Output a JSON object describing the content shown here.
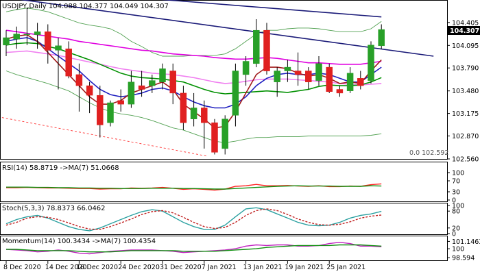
{
  "chart_data": {
    "type": "candlestick",
    "symbol_header": "USDJPY,Daily  104.088 104.377 104.049 104.307",
    "current_price": "104.307",
    "fib_label": "0.0 102.592",
    "x_labels": [
      "8 Dec 2020",
      "14 Dec 2020",
      "18 Dec 2020",
      "24 Dec 2020",
      "31 Dec 2020",
      "7 Jan 2021",
      "13 Jan 2021",
      "19 Jan 2021",
      "25 Jan 2021"
    ],
    "main_ticks": [
      "104.405",
      "104.095",
      "103.790",
      "103.480",
      "103.175",
      "102.870",
      "102.560"
    ],
    "main_ylim": [
      102.56,
      104.7
    ],
    "candles": [
      {
        "o": 104.1,
        "h": 104.3,
        "l": 103.95,
        "c": 104.2
      },
      {
        "o": 104.18,
        "h": 104.35,
        "l": 104.05,
        "c": 104.25
      },
      {
        "o": 104.25,
        "h": 104.6,
        "l": 104.1,
        "c": 104.25
      },
      {
        "o": 104.24,
        "h": 104.4,
        "l": 104.05,
        "c": 104.28
      },
      {
        "o": 104.28,
        "h": 104.38,
        "l": 103.85,
        "c": 104.03
      },
      {
        "o": 104.03,
        "h": 104.2,
        "l": 103.5,
        "c": 104.09
      },
      {
        "o": 104.05,
        "h": 104.15,
        "l": 103.65,
        "c": 103.68
      },
      {
        "o": 103.7,
        "h": 103.85,
        "l": 103.2,
        "c": 103.55
      },
      {
        "o": 103.55,
        "h": 103.6,
        "l": 103.18,
        "c": 103.42
      },
      {
        "o": 103.42,
        "h": 103.55,
        "l": 102.85,
        "c": 103.02
      },
      {
        "o": 103.05,
        "h": 103.35,
        "l": 103.0,
        "c": 103.32
      },
      {
        "o": 103.35,
        "h": 103.5,
        "l": 103.2,
        "c": 103.3
      },
      {
        "o": 103.3,
        "h": 103.75,
        "l": 103.25,
        "c": 103.6
      },
      {
        "o": 103.55,
        "h": 103.75,
        "l": 103.4,
        "c": 103.5
      },
      {
        "o": 103.55,
        "h": 103.7,
        "l": 103.45,
        "c": 103.62
      },
      {
        "o": 103.6,
        "h": 103.85,
        "l": 103.5,
        "c": 103.78
      },
      {
        "o": 103.75,
        "h": 103.85,
        "l": 103.3,
        "c": 103.45
      },
      {
        "o": 103.45,
        "h": 103.55,
        "l": 102.95,
        "c": 103.05
      },
      {
        "o": 103.1,
        "h": 103.45,
        "l": 103.0,
        "c": 103.25
      },
      {
        "o": 103.25,
        "h": 103.35,
        "l": 102.7,
        "c": 103.05
      },
      {
        "o": 103.05,
        "h": 103.1,
        "l": 102.62,
        "c": 102.65
      },
      {
        "o": 102.7,
        "h": 103.15,
        "l": 102.62,
        "c": 103.1
      },
      {
        "o": 103.15,
        "h": 103.85,
        "l": 103.0,
        "c": 103.75
      },
      {
        "o": 103.7,
        "h": 103.95,
        "l": 103.55,
        "c": 103.88
      },
      {
        "o": 103.85,
        "h": 104.45,
        "l": 103.8,
        "c": 104.3
      },
      {
        "o": 104.3,
        "h": 104.4,
        "l": 103.7,
        "c": 103.75
      },
      {
        "o": 103.6,
        "h": 103.8,
        "l": 103.4,
        "c": 103.75
      },
      {
        "o": 103.75,
        "h": 103.9,
        "l": 103.6,
        "c": 103.8
      },
      {
        "o": 103.75,
        "h": 104.0,
        "l": 103.55,
        "c": 103.7
      },
      {
        "o": 103.75,
        "h": 103.8,
        "l": 103.5,
        "c": 103.6
      },
      {
        "o": 103.62,
        "h": 103.95,
        "l": 103.55,
        "c": 103.85
      },
      {
        "o": 103.8,
        "h": 103.85,
        "l": 103.45,
        "c": 103.47
      },
      {
        "o": 103.5,
        "h": 103.55,
        "l": 103.4,
        "c": 103.45
      },
      {
        "o": 103.48,
        "h": 103.8,
        "l": 103.45,
        "c": 103.72
      },
      {
        "o": 103.65,
        "h": 103.75,
        "l": 103.5,
        "c": 103.55
      },
      {
        "o": 103.62,
        "h": 104.15,
        "l": 103.58,
        "c": 104.1
      },
      {
        "o": 104.09,
        "h": 104.38,
        "l": 104.05,
        "c": 104.31
      }
    ],
    "overlays": [
      {
        "name": "",
        "color": "#e000e0",
        "values": [
          104.3,
          104.28,
          104.26,
          104.24,
          104.22,
          104.2,
          104.18,
          104.15,
          104.13,
          104.11,
          104.09,
          104.07,
          104.05,
          104.03,
          104.02,
          104.0,
          103.98,
          103.97,
          103.96,
          103.95,
          103.93,
          103.92,
          103.91,
          103.91,
          103.92,
          103.93,
          103.92,
          103.9,
          103.88,
          103.86,
          103.86,
          103.85,
          103.84,
          103.84,
          103.84,
          103.86,
          103.88
        ]
      },
      {
        "name": "",
        "color": "#f080f0",
        "values": [
          104.0,
          104.01,
          104.02,
          104.0,
          103.98,
          103.96,
          103.93,
          103.9,
          103.87,
          103.84,
          103.81,
          103.78,
          103.76,
          103.74,
          103.72,
          103.71,
          103.7,
          103.68,
          103.66,
          103.63,
          103.6,
          103.58,
          103.59,
          103.61,
          103.63,
          103.64,
          103.64,
          103.64,
          103.63,
          103.62,
          103.61,
          103.6,
          103.58,
          103.57,
          103.56,
          103.57,
          103.58
        ]
      },
      {
        "name": "",
        "color": "#009000",
        "values": [
          104.1,
          104.12,
          104.13,
          104.12,
          104.08,
          104.05,
          104.0,
          103.95,
          103.9,
          103.84,
          103.78,
          103.72,
          103.68,
          103.66,
          103.65,
          103.64,
          103.62,
          103.6,
          103.55,
          103.5,
          103.46,
          103.44,
          103.45,
          103.46,
          103.47,
          103.48,
          103.47,
          103.46,
          103.48,
          103.5,
          103.54,
          103.56,
          103.55,
          103.55,
          103.56,
          103.6,
          103.66
        ]
      },
      {
        "name": "",
        "color": "#2020c0",
        "values": [
          104.15,
          104.18,
          104.2,
          104.15,
          104.05,
          103.95,
          103.85,
          103.75,
          103.62,
          103.5,
          103.43,
          103.4,
          103.42,
          103.45,
          103.5,
          103.52,
          103.48,
          103.4,
          103.33,
          103.28,
          103.25,
          103.25,
          103.3,
          103.4,
          103.55,
          103.65,
          103.7,
          103.72,
          103.7,
          103.7,
          103.72,
          103.7,
          103.65,
          103.6,
          103.6,
          103.7,
          103.8
        ]
      },
      {
        "name": "",
        "color": "#a01818",
        "values": [
          104.18,
          104.22,
          104.24,
          104.15,
          104.0,
          103.85,
          103.7,
          103.55,
          103.4,
          103.3,
          103.3,
          103.35,
          103.45,
          103.5,
          103.55,
          103.6,
          103.5,
          103.3,
          103.2,
          103.1,
          102.98,
          103.0,
          103.2,
          103.45,
          103.7,
          103.8,
          103.8,
          103.78,
          103.72,
          103.68,
          103.7,
          103.65,
          103.58,
          103.6,
          103.58,
          103.75,
          103.9
        ]
      }
    ],
    "bands": {
      "color": "#50a050",
      "upper": [
        104.55,
        104.58,
        104.6,
        104.58,
        104.55,
        104.5,
        104.45,
        104.4,
        104.37,
        104.35,
        104.32,
        104.25,
        104.15,
        104.08,
        104.0,
        103.95,
        103.95,
        103.95,
        103.96,
        103.96,
        103.96,
        103.98,
        104.05,
        104.15,
        104.25,
        104.3,
        104.3,
        104.32,
        104.33,
        104.33,
        104.32,
        104.3,
        104.28,
        104.28,
        104.28,
        104.32,
        104.42
      ],
      "lower": [
        103.75,
        103.7,
        103.66,
        103.62,
        103.58,
        103.53,
        103.48,
        103.4,
        103.32,
        103.25,
        103.2,
        103.17,
        103.15,
        103.12,
        103.08,
        103.03,
        102.98,
        102.95,
        102.9,
        102.85,
        102.8,
        102.78,
        102.8,
        102.83,
        102.85,
        102.85,
        102.86,
        102.86,
        102.86,
        102.87,
        102.87,
        102.87,
        102.87,
        102.87,
        102.87,
        102.88,
        102.9
      ]
    },
    "trendlines": [
      {
        "color": "#1a1a78",
        "points": [
          [
            14.5,
            104.72
          ],
          [
            36.0,
            104.48
          ]
        ]
      },
      {
        "color": "#1a1a78",
        "points": [
          [
            -0.4,
            104.75
          ],
          [
            41.0,
            103.95
          ]
        ]
      },
      {
        "color": "#ff3030",
        "dash": true,
        "points": [
          [
            -0.4,
            103.12
          ],
          [
            19.2,
            102.6
          ]
        ]
      }
    ],
    "indicators": [
      {
        "label": "RSI(14) 58.8719 ->MA(7) 51.0668",
        "ticks": [
          "100",
          "70",
          "30",
          "0"
        ],
        "ylim": [
          0,
          100
        ],
        "series": [
          {
            "color": "#ff2020",
            "values": [
              45,
              45,
              46,
              45,
              44,
              44,
              43,
              42,
              42,
              40,
              41,
              41,
              44,
              43,
              44,
              46,
              43,
              39,
              41,
              39,
              36,
              40,
              50,
              52,
              57,
              52,
              52,
              53,
              51,
              50,
              52,
              49,
              49,
              51,
              50,
              56,
              59
            ]
          },
          {
            "color": "#109010",
            "values": [
              47,
              47,
              47,
              46,
              46,
              45,
              45,
              44,
              44,
              43,
              43,
              42,
              42,
              42,
              43,
              43,
              43,
              42,
              42,
              41,
              40,
              40,
              42,
              44,
              46,
              48,
              50,
              51,
              52,
              51,
              51,
              51,
              50,
              50,
              50,
              52,
              51
            ]
          }
        ]
      },
      {
        "label": "Stoch(5,3,3) 78.8373 66.0462",
        "ticks": [
          "100",
          "80",
          "20",
          "0"
        ],
        "ylim": [
          0,
          100
        ],
        "series": [
          {
            "color": "#2aa0a0",
            "values": [
              35,
              50,
              60,
              65,
              55,
              40,
              25,
              15,
              10,
              20,
              35,
              50,
              65,
              78,
              85,
              80,
              60,
              40,
              25,
              15,
              15,
              30,
              60,
              88,
              92,
              85,
              70,
              55,
              40,
              30,
              28,
              30,
              40,
              55,
              65,
              70,
              79
            ]
          },
          {
            "color": "#c02020",
            "dash": true,
            "values": [
              30,
              40,
              55,
              60,
              58,
              50,
              38,
              25,
              16,
              15,
              25,
              38,
              52,
              68,
              78,
              82,
              74,
              58,
              40,
              25,
              18,
              22,
              40,
              65,
              82,
              88,
              82,
              68,
              52,
              40,
              32,
              30,
              33,
              42,
              55,
              62,
              66
            ]
          }
        ]
      },
      {
        "label": "Momentum(14) 100.3434 ->MA(7) 100.4354",
        "ticks": [
          "101.1463",
          "100",
          "98.594"
        ],
        "ylim": [
          98.4,
          101.4
        ],
        "series": [
          {
            "color": "#c020c0",
            "values": [
              99.9,
              99.8,
              99.7,
              99.5,
              99.6,
              99.8,
              99.6,
              99.3,
              99.2,
              99.4,
              99.6,
              99.7,
              99.8,
              99.8,
              99.8,
              99.7,
              99.6,
              99.4,
              99.5,
              99.6,
              99.7,
              99.8,
              100.0,
              100.4,
              100.6,
              100.5,
              100.6,
              100.6,
              100.4,
              100.4,
              100.5,
              100.8,
              101.0,
              100.8,
              100.4,
              100.4,
              100.3
            ]
          },
          {
            "color": "#109010",
            "values": [
              99.9,
              99.9,
              99.8,
              99.7,
              99.7,
              99.7,
              99.7,
              99.6,
              99.5,
              99.5,
              99.5,
              99.6,
              99.7,
              99.7,
              99.7,
              99.7,
              99.7,
              99.6,
              99.6,
              99.6,
              99.6,
              99.7,
              99.8,
              99.9,
              100.0,
              100.2,
              100.3,
              100.4,
              100.5,
              100.5,
              100.5,
              100.5,
              100.6,
              100.6,
              100.6,
              100.5,
              100.4
            ]
          }
        ]
      }
    ]
  },
  "colors": {
    "bull": "#28a028",
    "bear": "#e02020",
    "axis": "#000000",
    "current_bg": "#000000"
  }
}
